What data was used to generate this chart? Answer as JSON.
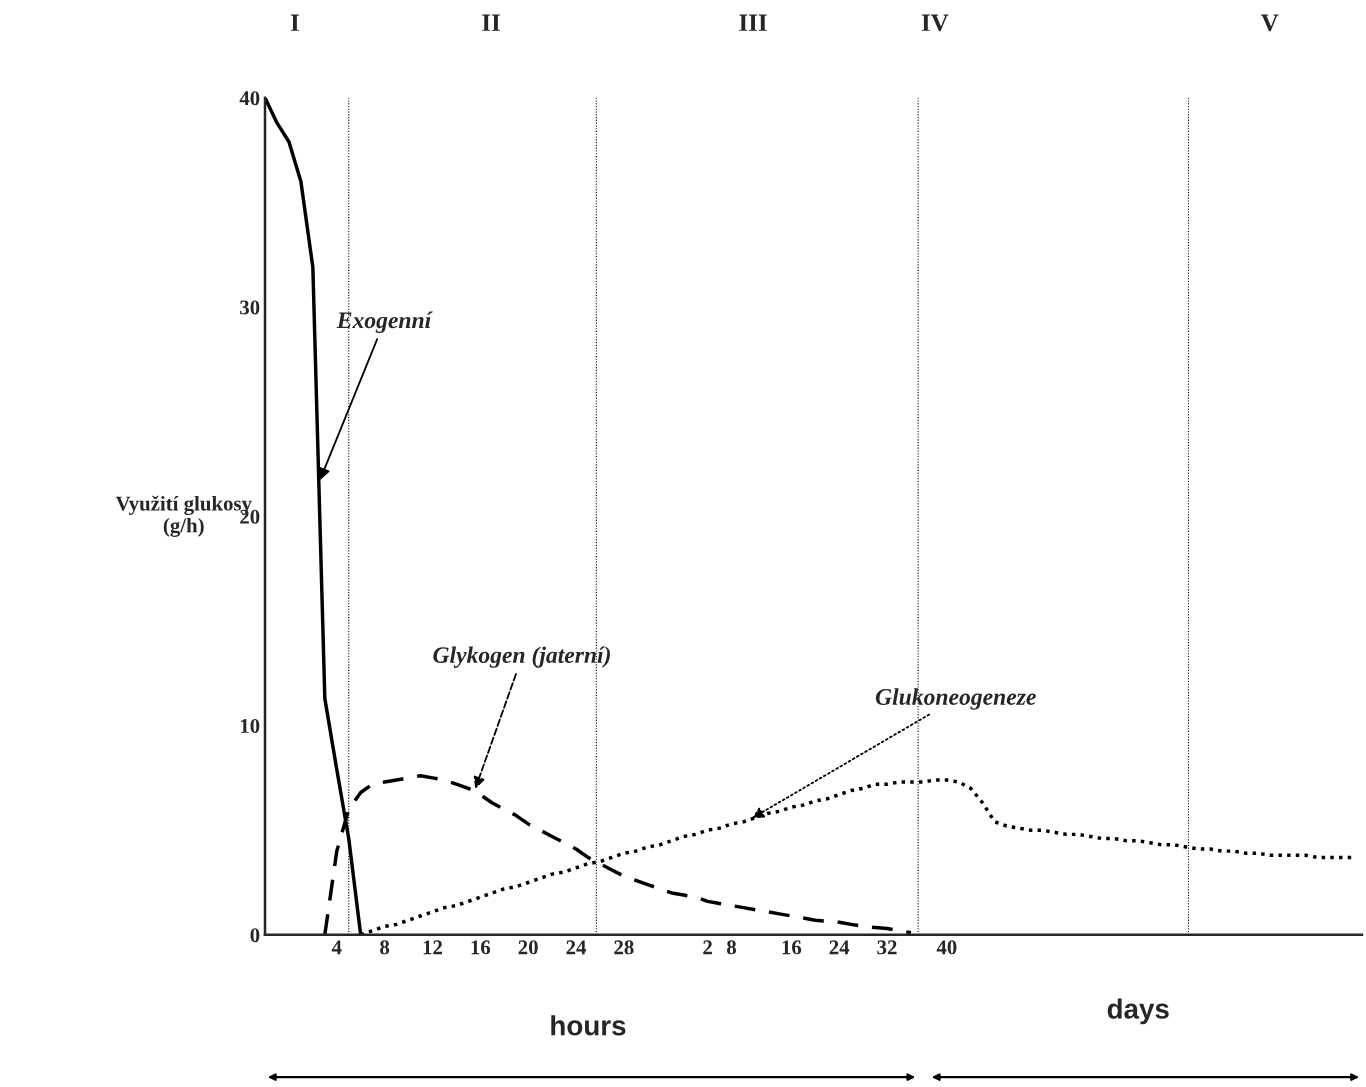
{
  "chart_data": {
    "type": "line",
    "ylabel": "Využití glukosy\n(g/h)",
    "ylim": [
      0,
      40
    ],
    "yticks": [
      0,
      10,
      20,
      30,
      40
    ],
    "categories": [
      null,
      null,
      null,
      null,
      null,
      null,
      "4",
      null,
      null,
      null,
      "8",
      null,
      null,
      null,
      "12",
      null,
      null,
      null,
      "16",
      null,
      null,
      null,
      "20",
      null,
      null,
      null,
      "24",
      null,
      null,
      null,
      "28",
      null,
      null,
      null,
      null,
      null,
      null,
      "2",
      null,
      "8",
      null,
      null,
      null,
      null,
      "16",
      null,
      null,
      null,
      "24",
      null,
      null,
      null,
      "32",
      null,
      null,
      null,
      null,
      "40",
      null,
      null,
      null,
      null,
      null,
      null,
      null,
      null,
      null,
      null,
      null,
      null,
      null,
      null,
      null,
      null,
      null,
      null,
      null,
      null,
      null,
      null,
      null,
      null,
      null,
      null,
      null,
      null,
      null,
      null,
      null,
      null,
      null,
      null
    ],
    "grid": false,
    "legend": false,
    "series": [
      {
        "name": "Exogenní",
        "color": "#000000",
        "line_style": "solid",
        "values": [
          40,
          38.8,
          37.9,
          36,
          31.9,
          11.3,
          7.9,
          4.6,
          0,
          null,
          null,
          null,
          null,
          null,
          null,
          null,
          null,
          null,
          null,
          null,
          null,
          null,
          null,
          null,
          null,
          null,
          null,
          null,
          null,
          null,
          null,
          null,
          null,
          null,
          null,
          null,
          null,
          null,
          null,
          null,
          null,
          null,
          null,
          null,
          null,
          null,
          null,
          null,
          null,
          null,
          null,
          null,
          null,
          null,
          null,
          null,
          null,
          null,
          null,
          null,
          null,
          null,
          null,
          null,
          null,
          null,
          null,
          null,
          null,
          null,
          null,
          null,
          null,
          null,
          null,
          null,
          null,
          null,
          null,
          null,
          null,
          null,
          null,
          null,
          null,
          null,
          null,
          null,
          null,
          null,
          null,
          null
        ]
      },
      {
        "name": "Glykogen (jaterní)",
        "color": "#000000",
        "line_style": "dashed",
        "values": [
          null,
          null,
          null,
          null,
          null,
          0,
          4.0,
          6.0,
          6.8,
          7.2,
          7.3,
          7.4,
          7.5,
          7.6,
          7.5,
          7.4,
          7.2,
          7.0,
          6.7,
          6.3,
          6.0,
          5.7,
          5.3,
          5.0,
          4.7,
          4.4,
          4.1,
          3.7,
          3.4,
          3.1,
          2.8,
          2.6,
          2.4,
          2.2,
          2.0,
          1.9,
          1.8,
          1.6,
          1.5,
          1.4,
          1.3,
          1.2,
          1.1,
          1.0,
          0.9,
          0.8,
          0.7,
          0.65,
          0.6,
          0.5,
          0.4,
          0.35,
          0.3,
          0.2,
          0.1,
          null,
          null,
          null,
          null,
          null,
          null,
          null,
          null,
          null,
          null,
          null,
          null,
          null,
          null,
          null,
          null,
          null,
          null,
          null,
          null,
          null,
          null,
          null,
          null,
          null,
          null,
          null,
          null,
          null,
          null,
          null,
          null,
          null,
          null,
          null,
          null,
          null
        ]
      },
      {
        "name": "Glukoneogeneze",
        "color": "#000000",
        "line_style": "dotted",
        "values": [
          null,
          null,
          null,
          null,
          null,
          null,
          null,
          null,
          0.0,
          0.2,
          0.4,
          0.5,
          0.7,
          0.9,
          1.1,
          1.3,
          1.4,
          1.6,
          1.8,
          2.0,
          2.2,
          2.3,
          2.5,
          2.7,
          2.9,
          3.0,
          3.2,
          3.4,
          3.5,
          3.7,
          3.9,
          4.0,
          4.2,
          4.3,
          4.5,
          4.7,
          4.8,
          5.0,
          5.1,
          5.3,
          5.4,
          5.6,
          5.8,
          5.9,
          6.1,
          6.2,
          6.4,
          6.5,
          6.7,
          6.9,
          7.0,
          7.2,
          7.2,
          7.3,
          7.3,
          7.3,
          7.4,
          7.4,
          7.3,
          7.0,
          6.3,
          5.4,
          5.2,
          5.1,
          5.0,
          5.0,
          4.9,
          4.8,
          4.8,
          4.7,
          4.6,
          4.6,
          4.5,
          4.5,
          4.4,
          4.3,
          4.3,
          4.2,
          4.1,
          4.1,
          4.0,
          4.0,
          3.9,
          3.9,
          3.8,
          3.8,
          3.8,
          3.8,
          3.7,
          3.7,
          3.7,
          3.7
        ]
      }
    ],
    "annotations": [
      "I",
      "II",
      "III",
      "IV",
      "V",
      "hours",
      "days"
    ]
  }
}
